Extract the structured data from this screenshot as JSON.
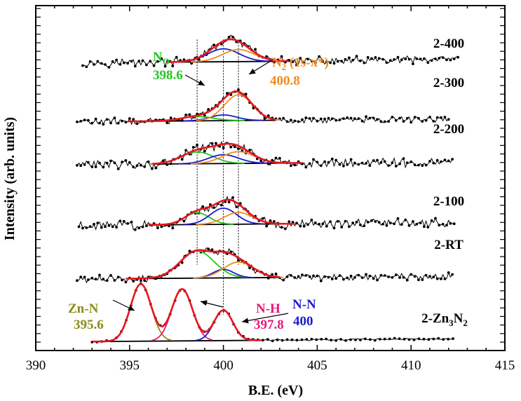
{
  "chart_data": {
    "type": "line",
    "title": "",
    "xlabel": "B.E. (eV)",
    "ylabel": "Intensity (arb. units)",
    "xlim": [
      390,
      415
    ],
    "x_ticks": [
      390,
      395,
      400,
      405,
      410,
      415
    ],
    "y_ticks_labeled": false,
    "grid": false,
    "legend": "none",
    "series": [
      {
        "name": "2-400",
        "offset": 8.6,
        "scale": 0.45,
        "noise": 0.09,
        "range": [
          392.5,
          412.5
        ],
        "fit_range": [
          397.0,
          403.5
        ],
        "components": [
          {
            "label": "N-N",
            "center": 400.0,
            "height": 0.8,
            "width": 0.85
          },
          {
            "label": "N2 (1s-π*)",
            "center": 400.8,
            "height": 0.75,
            "width": 0.85
          }
        ]
      },
      {
        "name": "2-300",
        "offset": 6.95,
        "scale": 0.8,
        "noise": 0.07,
        "range": [
          392.2,
          412.0
        ],
        "fit_range": [
          394.9,
          402.8
        ],
        "components": [
          {
            "label": "NO",
            "center": 398.6,
            "height": 0.15,
            "width": 0.85
          },
          {
            "label": "N-N",
            "center": 400.0,
            "height": 0.2,
            "width": 0.7
          },
          {
            "label": "N2 (1s-π*)",
            "center": 400.8,
            "height": 0.9,
            "width": 0.75
          }
        ]
      },
      {
        "name": "2-200",
        "offset": 5.75,
        "scale": 0.55,
        "noise": 0.1,
        "range": [
          392.2,
          412.2
        ],
        "fit_range": [
          396.2,
          404.2
        ],
        "components": [
          {
            "label": "NO",
            "center": 398.6,
            "height": 0.6,
            "width": 0.85
          },
          {
            "label": "N-N",
            "center": 400.0,
            "height": 0.45,
            "width": 0.8
          },
          {
            "label": "N2 (1s-π*)",
            "center": 400.8,
            "height": 0.6,
            "width": 0.85
          }
        ]
      },
      {
        "name": "2-100",
        "offset": 4.05,
        "scale": 0.6,
        "noise": 0.1,
        "range": [
          392.3,
          412.3
        ],
        "fit_range": [
          396.0,
          403.8
        ],
        "components": [
          {
            "label": "NO",
            "center": 398.6,
            "height": 0.55,
            "width": 0.65
          },
          {
            "label": "N-N",
            "center": 400.0,
            "height": 0.75,
            "width": 0.7
          },
          {
            "label": "N2 (1s-π*)",
            "center": 400.8,
            "height": 0.55,
            "width": 0.75
          }
        ]
      },
      {
        "name": "2-RT",
        "offset": 2.55,
        "scale": 0.8,
        "noise": 0.08,
        "range": [
          392.2,
          412.2
        ],
        "fit_range": [
          394.8,
          403.0
        ],
        "components": [
          {
            "label": "NO",
            "center": 398.6,
            "height": 0.95,
            "width": 0.9
          },
          {
            "label": "N-N",
            "center": 400.0,
            "height": 0.3,
            "width": 0.55
          },
          {
            "label": "N2 (1s-π*)",
            "center": 400.8,
            "height": 0.55,
            "width": 0.8
          }
        ]
      },
      {
        "name": "2-Zn3N2",
        "offset": 0.8,
        "scale": 1.0,
        "noise": 0.02,
        "range": [
          393.0,
          412.3
        ],
        "fit_range": [
          393.0,
          402.0
        ],
        "components": [
          {
            "label": "Zn-N",
            "center": 395.6,
            "height": 1.6,
            "width": 0.55
          },
          {
            "label": "N-H",
            "center": 397.8,
            "height": 1.45,
            "width": 0.55
          },
          {
            "label": "N-N",
            "center": 400.0,
            "height": 0.85,
            "width": 0.5
          }
        ]
      }
    ],
    "reference_lines": [
      398.6,
      400.0,
      400.8
    ],
    "annotations": [
      {
        "label": "Zn-N",
        "value": "395.6",
        "color": "#8b8b1a"
      },
      {
        "label": "N-H",
        "value": "397.8",
        "color": "#e8187a"
      },
      {
        "label": "N-N",
        "value": "400",
        "color": "#1a1acd"
      },
      {
        "label": "N",
        "label_sub": "O",
        "value": "398.6",
        "color": "#1ec81e"
      },
      {
        "label": "N",
        "label_sub": "2",
        "label_rest": " (1s-π*)",
        "value": "400.8",
        "color": "#f08c1e"
      }
    ],
    "series_labels": [
      {
        "text": "2-400"
      },
      {
        "text": "2-300"
      },
      {
        "text": "2-200"
      },
      {
        "text": "2-100"
      },
      {
        "text": "2-RT"
      },
      {
        "text": "2-Zn",
        "sub": "3",
        "mid": "N",
        "sub2": "2"
      }
    ],
    "colors": {
      "data": "#000000",
      "fit_total": "#e8141e",
      "NO": "#1ec81e",
      "N-N": "#1a1acd",
      "N2 (1s-π*)": "#f08c1e",
      "Zn-N": "#8b8b1a",
      "N-H": "#e8187a",
      "baseline": "#000000"
    }
  }
}
